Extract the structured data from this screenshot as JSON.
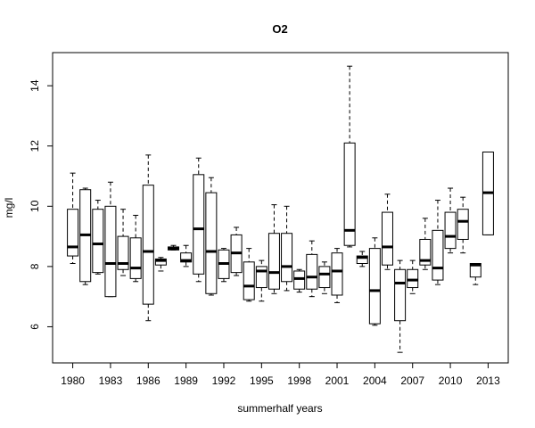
{
  "chart_data": {
    "type": "box",
    "title": "O2",
    "xlabel": "summerhalf years",
    "ylabel": "mg/l",
    "ylim": [
      4.8,
      15.1
    ],
    "yticks": [
      6,
      8,
      10,
      12,
      14
    ],
    "xlim": [
      1978.4,
      2014.6
    ],
    "xticks": [
      1980,
      1983,
      1986,
      1989,
      1992,
      1995,
      1998,
      2001,
      2004,
      2007,
      2010,
      2013
    ],
    "boxes": [
      {
        "year": 1980,
        "lower": 8.1,
        "q1": 8.35,
        "median": 8.65,
        "q3": 9.9,
        "upper": 11.1
      },
      {
        "year": 1981,
        "lower": 7.4,
        "q1": 7.5,
        "median": 9.05,
        "q3": 10.55,
        "upper": 10.6
      },
      {
        "year": 1982,
        "lower": 7.75,
        "q1": 7.8,
        "median": 8.75,
        "q3": 9.9,
        "upper": 10.2
      },
      {
        "year": 1983,
        "lower": 7.0,
        "q1": 7.0,
        "median": 8.1,
        "q3": 10.0,
        "upper": 10.8
      },
      {
        "year": 1984,
        "lower": 7.7,
        "q1": 7.9,
        "median": 8.1,
        "q3": 9.0,
        "upper": 9.9
      },
      {
        "year": 1985,
        "lower": 7.5,
        "q1": 7.6,
        "median": 7.95,
        "q3": 8.95,
        "upper": 9.7
      },
      {
        "year": 1986,
        "lower": 6.2,
        "q1": 6.75,
        "median": 8.5,
        "q3": 10.7,
        "upper": 11.7
      },
      {
        "year": 1987,
        "lower": 7.85,
        "q1": 8.05,
        "median": 8.2,
        "q3": 8.25,
        "upper": 8.3
      },
      {
        "year": 1988,
        "lower": 8.55,
        "q1": 8.55,
        "median": 8.6,
        "q3": 8.65,
        "upper": 8.7
      },
      {
        "year": 1989,
        "lower": 8.0,
        "q1": 8.15,
        "median": 8.2,
        "q3": 8.45,
        "upper": 8.7
      },
      {
        "year": 1990,
        "lower": 7.5,
        "q1": 7.75,
        "median": 9.25,
        "q3": 11.05,
        "upper": 11.6
      },
      {
        "year": 1991,
        "lower": 7.05,
        "q1": 7.1,
        "median": 8.5,
        "q3": 10.45,
        "upper": 10.95
      },
      {
        "year": 1992,
        "lower": 7.5,
        "q1": 7.6,
        "median": 8.1,
        "q3": 8.55,
        "upper": 8.6
      },
      {
        "year": 1993,
        "lower": 7.7,
        "q1": 7.8,
        "median": 8.45,
        "q3": 9.05,
        "upper": 9.3
      },
      {
        "year": 1994,
        "lower": 6.85,
        "q1": 6.9,
        "median": 7.35,
        "q3": 8.15,
        "upper": 8.6
      },
      {
        "year": 1995,
        "lower": 6.85,
        "q1": 7.3,
        "median": 7.85,
        "q3": 8.0,
        "upper": 8.2
      },
      {
        "year": 1996,
        "lower": 7.1,
        "q1": 7.25,
        "median": 7.8,
        "q3": 9.1,
        "upper": 10.05
      },
      {
        "year": 1997,
        "lower": 7.2,
        "q1": 7.5,
        "median": 8.0,
        "q3": 9.1,
        "upper": 10.0
      },
      {
        "year": 1998,
        "lower": 7.15,
        "q1": 7.25,
        "median": 7.6,
        "q3": 7.85,
        "upper": 7.9
      },
      {
        "year": 1999,
        "lower": 7.0,
        "q1": 7.25,
        "median": 7.65,
        "q3": 8.4,
        "upper": 8.85
      },
      {
        "year": 2000,
        "lower": 7.1,
        "q1": 7.3,
        "median": 7.75,
        "q3": 8.0,
        "upper": 8.15
      },
      {
        "year": 2001,
        "lower": 6.8,
        "q1": 7.05,
        "median": 7.85,
        "q3": 8.45,
        "upper": 8.6
      },
      {
        "year": 2002,
        "lower": 8.65,
        "q1": 8.7,
        "median": 9.2,
        "q3": 12.1,
        "upper": 14.65
      },
      {
        "year": 2003,
        "lower": 8.0,
        "q1": 8.1,
        "median": 8.3,
        "q3": 8.35,
        "upper": 8.5
      },
      {
        "year": 2004,
        "lower": 6.05,
        "q1": 6.1,
        "median": 7.2,
        "q3": 8.6,
        "upper": 8.95
      },
      {
        "year": 2005,
        "lower": 7.9,
        "q1": 8.05,
        "median": 8.65,
        "q3": 9.8,
        "upper": 10.4
      },
      {
        "year": 2006,
        "lower": 5.15,
        "q1": 6.2,
        "median": 7.45,
        "q3": 7.9,
        "upper": 8.2
      },
      {
        "year": 2007,
        "lower": 7.1,
        "q1": 7.3,
        "median": 7.55,
        "q3": 7.9,
        "upper": 8.2
      },
      {
        "year": 2008,
        "lower": 7.9,
        "q1": 8.05,
        "median": 8.2,
        "q3": 8.9,
        "upper": 9.6
      },
      {
        "year": 2009,
        "lower": 7.4,
        "q1": 7.55,
        "median": 7.95,
        "q3": 9.2,
        "upper": 10.2
      },
      {
        "year": 2010,
        "lower": 8.45,
        "q1": 8.6,
        "median": 9.0,
        "q3": 9.8,
        "upper": 10.6
      },
      {
        "year": 2011,
        "lower": 8.45,
        "q1": 8.9,
        "median": 9.5,
        "q3": 9.9,
        "upper": 10.3
      },
      {
        "year": 2012,
        "lower": 7.4,
        "q1": 7.65,
        "median": 8.05,
        "q3": 8.1,
        "upper": 8.1
      },
      {
        "year": 2013,
        "lower": 9.05,
        "q1": 9.05,
        "median": 10.45,
        "q3": 11.8,
        "upper": 11.8
      }
    ],
    "grid": false,
    "legend": "none"
  }
}
